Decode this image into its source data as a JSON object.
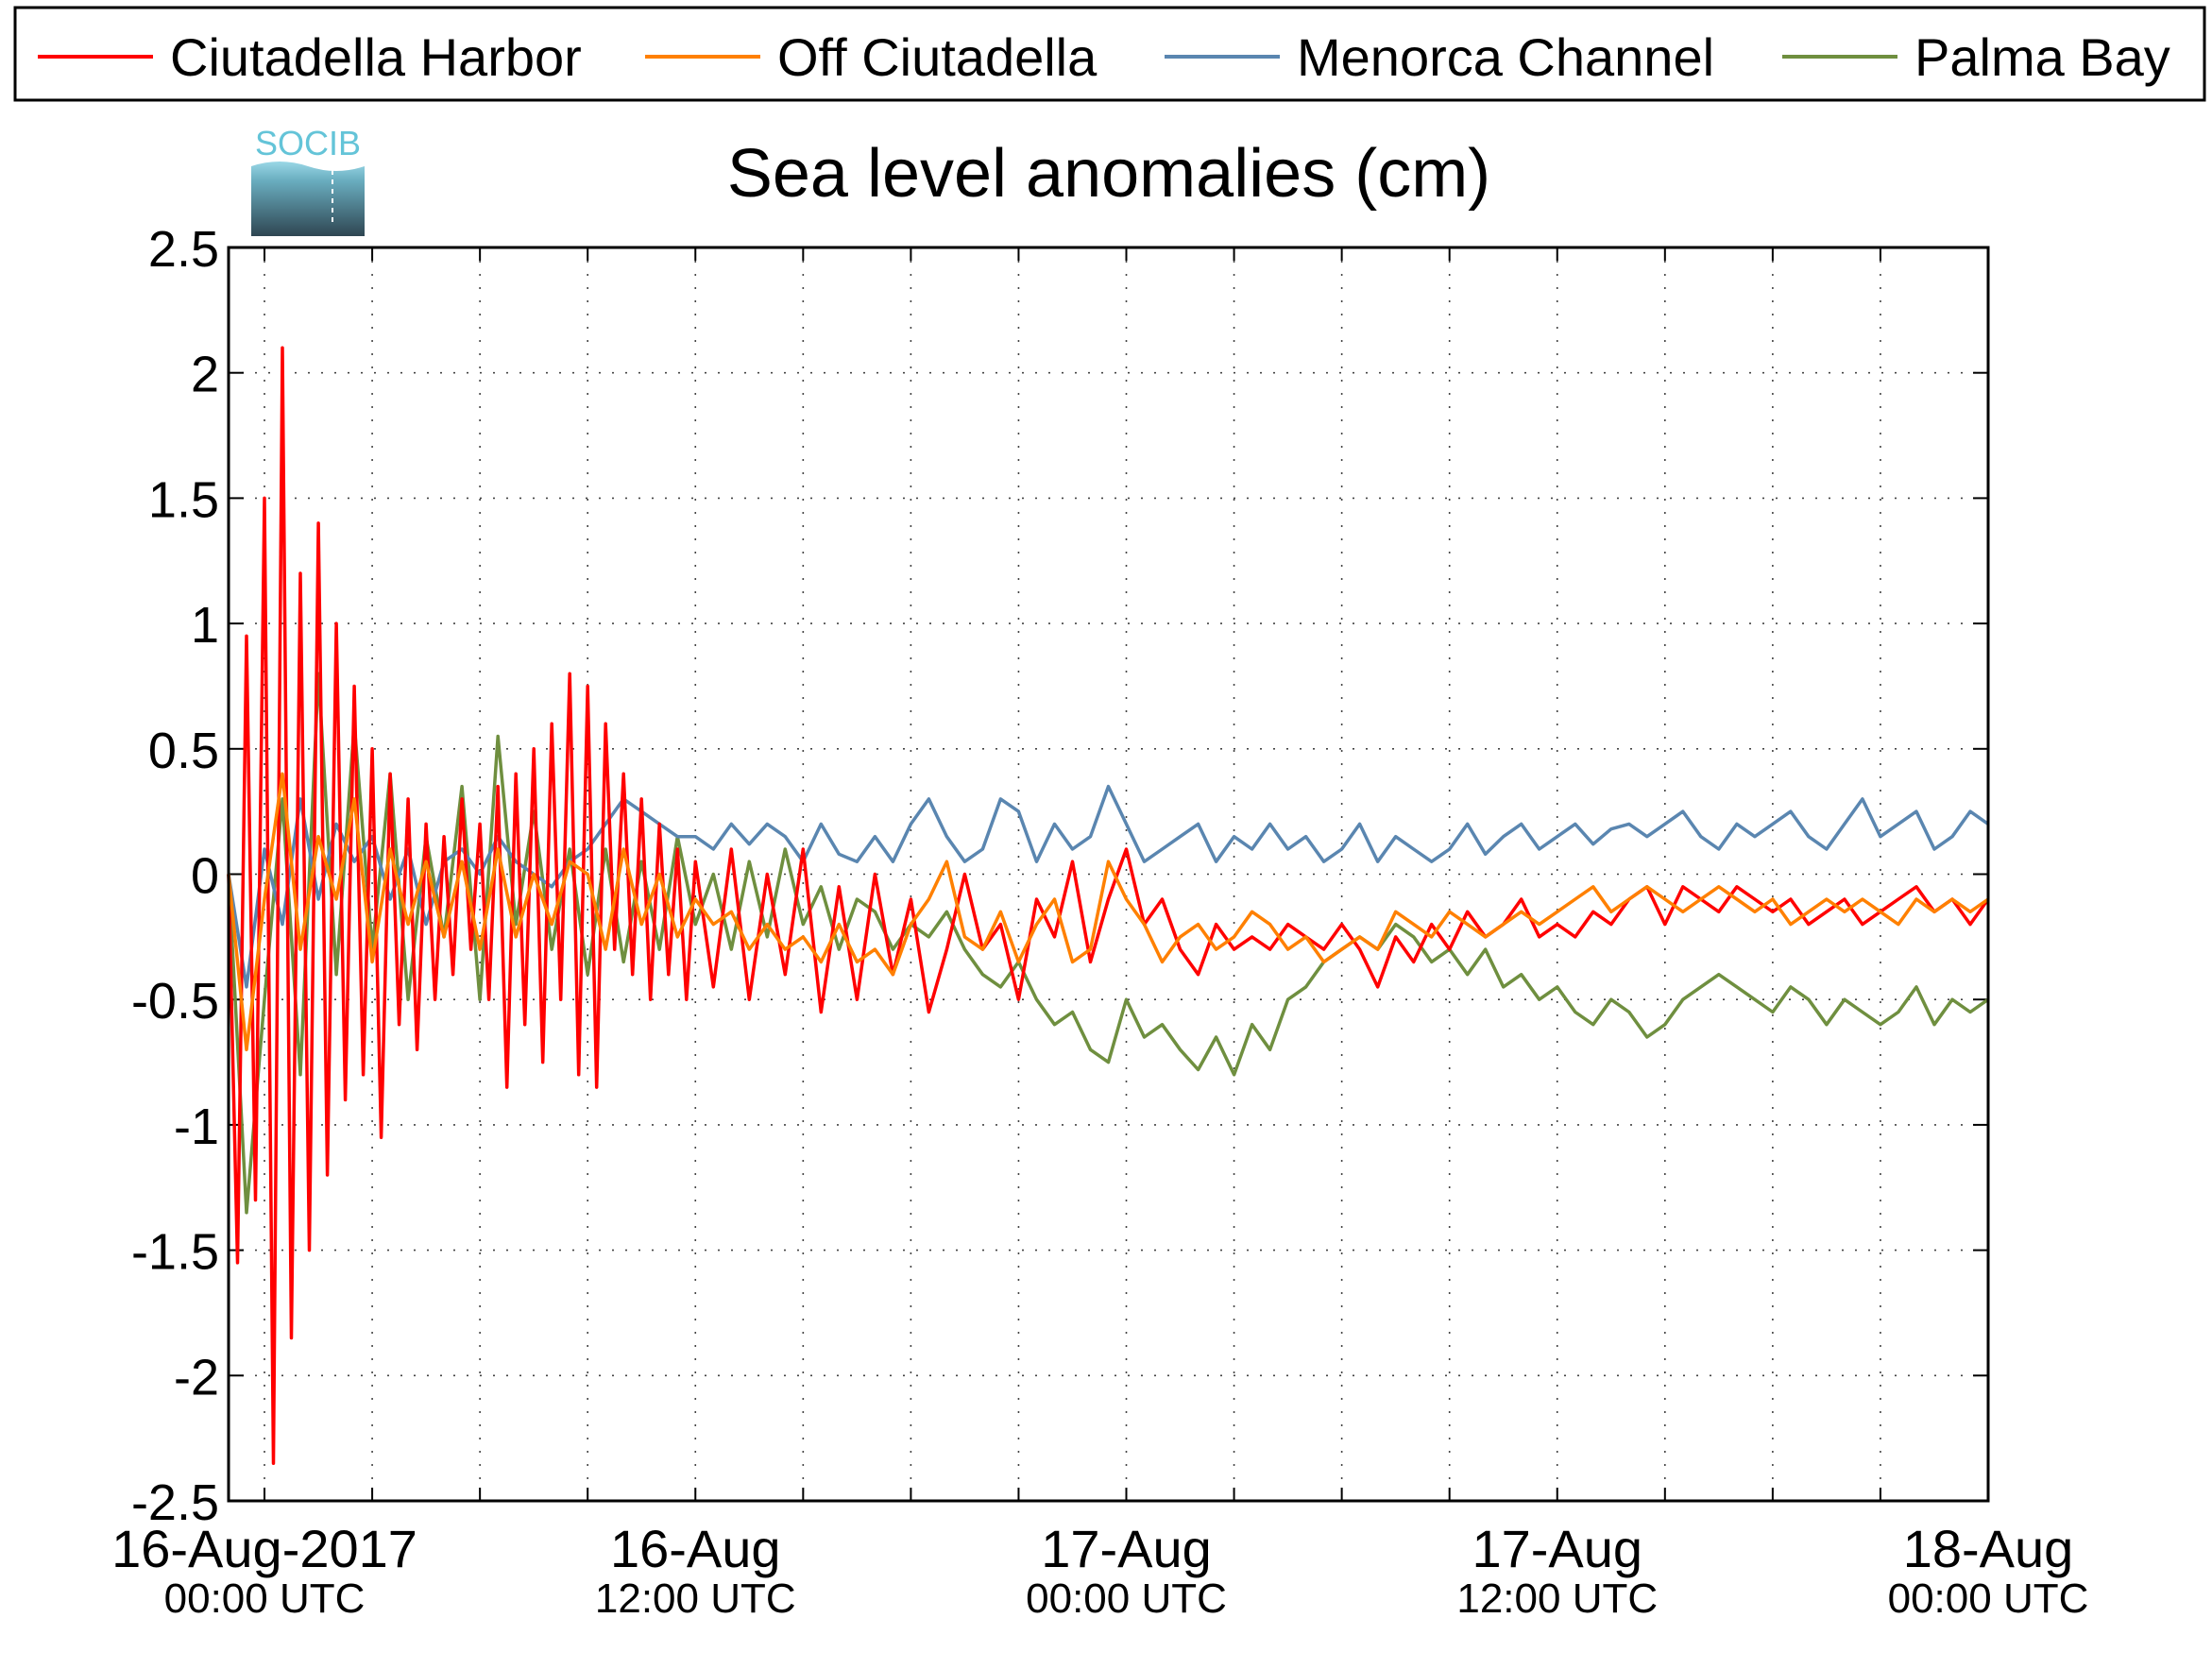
{
  "chart_data": {
    "type": "line",
    "title": "Sea level anomalies (cm)",
    "logo_text": "SOCIB",
    "xlabel": "",
    "ylabel": "",
    "x_unit": "hours since 16-Aug-2017 00:00 UTC",
    "xlim": [
      -1,
      48
    ],
    "ylim": [
      -2.5,
      2.5
    ],
    "grid": true,
    "legend_position": "top",
    "x_major_ticks": [
      {
        "x": 0,
        "line1": "16-Aug-2017",
        "line2": "00:00 UTC"
      },
      {
        "x": 12,
        "line1": "16-Aug",
        "line2": "12:00 UTC"
      },
      {
        "x": 24,
        "line1": "17-Aug",
        "line2": "00:00 UTC"
      },
      {
        "x": 36,
        "line1": "17-Aug",
        "line2": "12:00 UTC"
      },
      {
        "x": 48,
        "line1": "18-Aug",
        "line2": "00:00 UTC"
      }
    ],
    "x_minor_ticks": [
      3,
      6,
      9,
      15,
      18,
      21,
      27,
      30,
      33,
      39,
      42,
      45
    ],
    "y_ticks": [
      {
        "v": 2.5,
        "label": "2.5"
      },
      {
        "v": 2,
        "label": "2"
      },
      {
        "v": 1.5,
        "label": "1.5"
      },
      {
        "v": 1,
        "label": "1"
      },
      {
        "v": 0.5,
        "label": "0.5"
      },
      {
        "v": 0,
        "label": "0"
      },
      {
        "v": -0.5,
        "label": "-0.5"
      },
      {
        "v": -1,
        "label": "-1"
      },
      {
        "v": -1.5,
        "label": "-1.5"
      },
      {
        "v": -2,
        "label": "-2"
      },
      {
        "v": -2.5,
        "label": "-2.5"
      }
    ],
    "series": [
      {
        "name": "Palma Bay",
        "color": "#6f8f3f",
        "x": [
          -1,
          -0.5,
          0,
          0.5,
          1,
          1.5,
          2,
          2.5,
          3,
          3.5,
          4,
          4.5,
          5,
          5.5,
          6,
          6.5,
          7,
          7.5,
          8,
          8.5,
          9,
          9.5,
          10,
          10.5,
          11,
          11.5,
          12,
          12.5,
          13,
          13.5,
          14,
          14.5,
          15,
          15.5,
          16,
          16.5,
          17,
          17.5,
          18,
          18.5,
          19,
          19.5,
          20,
          20.5,
          21,
          21.5,
          22,
          22.5,
          23,
          23.5,
          24,
          24.5,
          25,
          25.5,
          26,
          26.5,
          27,
          27.5,
          28,
          28.5,
          29,
          29.5,
          30,
          30.5,
          31,
          31.5,
          32,
          32.5,
          33,
          33.5,
          34,
          34.5,
          35,
          35.5,
          36,
          36.5,
          37,
          37.5,
          38,
          38.5,
          39,
          39.5,
          40,
          40.5,
          41,
          41.5,
          42,
          42.5,
          43,
          43.5,
          44,
          44.5,
          45,
          45.5,
          46,
          46.5,
          47,
          47.5,
          48
        ],
        "values": [
          0,
          -1.35,
          -0.5,
          0.3,
          -0.8,
          0.8,
          -0.4,
          0.6,
          -0.3,
          0.4,
          -0.5,
          0.15,
          -0.25,
          0.35,
          -0.5,
          0.55,
          -0.2,
          0.25,
          -0.3,
          0.1,
          -0.4,
          0.1,
          -0.35,
          0.05,
          -0.3,
          0.15,
          -0.2,
          0,
          -0.3,
          0.05,
          -0.25,
          0.1,
          -0.2,
          -0.05,
          -0.3,
          -0.1,
          -0.15,
          -0.3,
          -0.2,
          -0.25,
          -0.15,
          -0.3,
          -0.4,
          -0.45,
          -0.35,
          -0.5,
          -0.6,
          -0.55,
          -0.7,
          -0.75,
          -0.5,
          -0.65,
          -0.6,
          -0.7,
          -0.78,
          -0.65,
          -0.8,
          -0.6,
          -0.7,
          -0.5,
          -0.45,
          -0.35,
          -0.3,
          -0.25,
          -0.3,
          -0.2,
          -0.25,
          -0.35,
          -0.3,
          -0.4,
          -0.3,
          -0.45,
          -0.4,
          -0.5,
          -0.45,
          -0.55,
          -0.6,
          -0.5,
          -0.55,
          -0.65,
          -0.6,
          -0.5,
          -0.45,
          -0.4,
          -0.45,
          -0.5,
          -0.55,
          -0.45,
          -0.5,
          -0.6,
          -0.5,
          -0.55,
          -0.6,
          -0.55,
          -0.45,
          -0.6,
          -0.5,
          -0.55,
          -0.5
        ]
      },
      {
        "name": "Menorca Channel",
        "color": "#5a86b0",
        "x": [
          -1,
          -0.5,
          0,
          0.5,
          1,
          1.5,
          2,
          2.5,
          3,
          3.5,
          4,
          4.5,
          5,
          5.5,
          6,
          6.5,
          7,
          7.5,
          8,
          8.5,
          9,
          9.5,
          10,
          10.5,
          11,
          11.5,
          12,
          12.5,
          13,
          13.5,
          14,
          14.5,
          15,
          15.5,
          16,
          16.5,
          17,
          17.5,
          18,
          18.5,
          19,
          19.5,
          20,
          20.5,
          21,
          21.5,
          22,
          22.5,
          23,
          23.5,
          24,
          24.5,
          25,
          25.5,
          26,
          26.5,
          27,
          27.5,
          28,
          28.5,
          29,
          29.5,
          30,
          30.5,
          31,
          31.5,
          32,
          32.5,
          33,
          33.5,
          34,
          34.5,
          35,
          35.5,
          36,
          36.5,
          37,
          37.5,
          38,
          38.5,
          39,
          39.5,
          40,
          40.5,
          41,
          41.5,
          42,
          42.5,
          43,
          43.5,
          44,
          44.5,
          45,
          45.5,
          46,
          46.5,
          47,
          47.5,
          48
        ],
        "values": [
          0,
          -0.45,
          0.1,
          -0.2,
          0.3,
          -0.1,
          0.2,
          0.05,
          0.15,
          -0.1,
          0.1,
          -0.2,
          0.05,
          0.1,
          0,
          0.15,
          0.05,
          0,
          -0.05,
          0.05,
          0.1,
          0.2,
          0.3,
          0.25,
          0.2,
          0.15,
          0.15,
          0.1,
          0.2,
          0.12,
          0.2,
          0.15,
          0.05,
          0.2,
          0.08,
          0.05,
          0.15,
          0.05,
          0.2,
          0.3,
          0.15,
          0.05,
          0.1,
          0.3,
          0.25,
          0.05,
          0.2,
          0.1,
          0.15,
          0.35,
          0.2,
          0.05,
          0.1,
          0.15,
          0.2,
          0.05,
          0.15,
          0.1,
          0.2,
          0.1,
          0.15,
          0.05,
          0.1,
          0.2,
          0.05,
          0.15,
          0.1,
          0.05,
          0.1,
          0.2,
          0.08,
          0.15,
          0.2,
          0.1,
          0.15,
          0.2,
          0.12,
          0.18,
          0.2,
          0.15,
          0.2,
          0.25,
          0.15,
          0.1,
          0.2,
          0.15,
          0.2,
          0.25,
          0.15,
          0.1,
          0.2,
          0.3,
          0.15,
          0.2,
          0.25,
          0.1,
          0.15,
          0.25,
          0.2
        ]
      },
      {
        "name": "Ciutadella Harbor",
        "color": "#ff0000",
        "x": [
          -1,
          -0.75,
          -0.5,
          -0.25,
          0,
          0.25,
          0.5,
          0.75,
          1,
          1.25,
          1.5,
          1.75,
          2,
          2.25,
          2.5,
          2.75,
          3,
          3.25,
          3.5,
          3.75,
          4,
          4.25,
          4.5,
          4.75,
          5,
          5.25,
          5.5,
          5.75,
          6,
          6.25,
          6.5,
          6.75,
          7,
          7.25,
          7.5,
          7.75,
          8,
          8.25,
          8.5,
          8.75,
          9,
          9.25,
          9.5,
          9.75,
          10,
          10.25,
          10.5,
          10.75,
          11,
          11.25,
          11.5,
          11.75,
          12,
          12.5,
          13,
          13.5,
          14,
          14.5,
          15,
          15.5,
          16,
          16.5,
          17,
          17.5,
          18,
          18.5,
          19,
          19.5,
          20,
          20.5,
          21,
          21.5,
          22,
          22.5,
          23,
          23.5,
          24,
          24.5,
          25,
          25.5,
          26,
          26.5,
          27,
          27.5,
          28,
          28.5,
          29,
          29.5,
          30,
          30.5,
          31,
          31.5,
          32,
          32.5,
          33,
          33.5,
          34,
          34.5,
          35,
          35.5,
          36,
          36.5,
          37,
          37.5,
          38,
          38.5,
          39,
          39.5,
          40,
          40.5,
          41,
          41.5,
          42,
          42.5,
          43,
          43.5,
          44,
          44.5,
          45,
          45.5,
          46,
          46.5,
          47,
          47.5,
          48
        ],
        "values": [
          0,
          -1.55,
          0.95,
          -1.3,
          1.5,
          -2.35,
          2.1,
          -1.85,
          1.2,
          -1.5,
          1.4,
          -1.2,
          1.0,
          -0.9,
          0.75,
          -0.8,
          0.5,
          -1.05,
          0.4,
          -0.6,
          0.3,
          -0.7,
          0.2,
          -0.5,
          0.15,
          -0.4,
          0.3,
          -0.3,
          0.2,
          -0.5,
          0.35,
          -0.85,
          0.4,
          -0.6,
          0.5,
          -0.75,
          0.6,
          -0.5,
          0.8,
          -0.8,
          0.75,
          -0.85,
          0.6,
          -0.3,
          0.4,
          -0.4,
          0.3,
          -0.5,
          0.2,
          -0.4,
          0.1,
          -0.5,
          0.05,
          -0.45,
          0.1,
          -0.5,
          0,
          -0.4,
          0.1,
          -0.55,
          -0.05,
          -0.5,
          0,
          -0.4,
          -0.1,
          -0.55,
          -0.3,
          0,
          -0.3,
          -0.2,
          -0.5,
          -0.1,
          -0.25,
          0.05,
          -0.35,
          -0.1,
          0.1,
          -0.2,
          -0.1,
          -0.3,
          -0.4,
          -0.2,
          -0.3,
          -0.25,
          -0.3,
          -0.2,
          -0.25,
          -0.3,
          -0.2,
          -0.3,
          -0.45,
          -0.25,
          -0.35,
          -0.2,
          -0.3,
          -0.15,
          -0.25,
          -0.2,
          -0.1,
          -0.25,
          -0.2,
          -0.25,
          -0.15,
          -0.2,
          -0.1,
          -0.05,
          -0.2,
          -0.05,
          -0.1,
          -0.15,
          -0.05,
          -0.1,
          -0.15,
          -0.1,
          -0.2,
          -0.15,
          -0.1,
          -0.2,
          -0.15,
          -0.1,
          -0.05,
          -0.15,
          -0.1,
          -0.2,
          -0.1
        ]
      },
      {
        "name": "Off Ciutadella",
        "color": "#ff8000",
        "x": [
          -1,
          -0.5,
          0,
          0.5,
          1,
          1.5,
          2,
          2.5,
          3,
          3.5,
          4,
          4.5,
          5,
          5.5,
          6,
          6.5,
          7,
          7.5,
          8,
          8.5,
          9,
          9.5,
          10,
          10.5,
          11,
          11.5,
          12,
          12.5,
          13,
          13.5,
          14,
          14.5,
          15,
          15.5,
          16,
          16.5,
          17,
          17.5,
          18,
          18.5,
          19,
          19.5,
          20,
          20.5,
          21,
          21.5,
          22,
          22.5,
          23,
          23.5,
          24,
          24.5,
          25,
          25.5,
          26,
          26.5,
          27,
          27.5,
          28,
          28.5,
          29,
          29.5,
          30,
          30.5,
          31,
          31.5,
          32,
          32.5,
          33,
          33.5,
          34,
          34.5,
          35,
          35.5,
          36,
          36.5,
          37,
          37.5,
          38,
          38.5,
          39,
          39.5,
          40,
          40.5,
          41,
          41.5,
          42,
          42.5,
          43,
          43.5,
          44,
          44.5,
          45,
          45.5,
          46,
          46.5,
          47,
          47.5,
          48
        ],
        "values": [
          0,
          -0.7,
          -0.1,
          0.4,
          -0.3,
          0.15,
          -0.1,
          0.3,
          -0.35,
          0.1,
          -0.2,
          0.05,
          -0.25,
          0.05,
          -0.3,
          0.1,
          -0.25,
          0,
          -0.2,
          0.05,
          0,
          -0.3,
          0.1,
          -0.2,
          0,
          -0.25,
          -0.1,
          -0.2,
          -0.15,
          -0.3,
          -0.2,
          -0.3,
          -0.25,
          -0.35,
          -0.2,
          -0.35,
          -0.3,
          -0.4,
          -0.2,
          -0.1,
          0.05,
          -0.25,
          -0.3,
          -0.15,
          -0.35,
          -0.2,
          -0.1,
          -0.35,
          -0.3,
          0.05,
          -0.1,
          -0.2,
          -0.35,
          -0.25,
          -0.2,
          -0.3,
          -0.25,
          -0.15,
          -0.2,
          -0.3,
          -0.25,
          -0.35,
          -0.3,
          -0.25,
          -0.3,
          -0.15,
          -0.2,
          -0.25,
          -0.15,
          -0.2,
          -0.25,
          -0.2,
          -0.15,
          -0.2,
          -0.15,
          -0.1,
          -0.05,
          -0.15,
          -0.1,
          -0.05,
          -0.1,
          -0.15,
          -0.1,
          -0.05,
          -0.1,
          -0.15,
          -0.1,
          -0.2,
          -0.15,
          -0.1,
          -0.15,
          -0.1,
          -0.15,
          -0.2,
          -0.1,
          -0.15,
          -0.1,
          -0.15,
          -0.1
        ]
      }
    ]
  }
}
